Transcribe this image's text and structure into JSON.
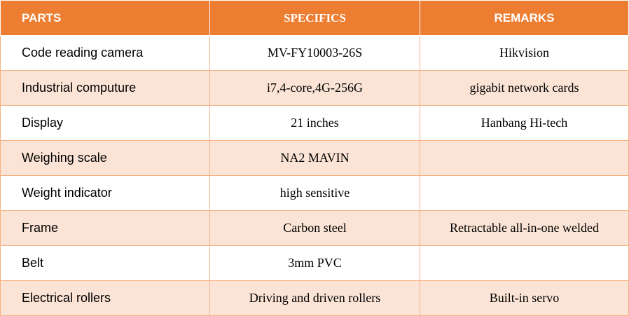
{
  "table": {
    "headers": {
      "parts": "PARTS",
      "specifics": "SPECIFICS",
      "remarks": "REMARKS"
    },
    "rows": [
      {
        "part": "Code reading camera",
        "spec": "MV-FY10003-26S",
        "remark": "Hikvision"
      },
      {
        "part": "Industrial computure",
        "spec": "i7,4-core,4G-256G",
        "remark": "gigabit network cards"
      },
      {
        "part": "Display",
        "spec": "21 inches",
        "remark": "Hanbang Hi-tech"
      },
      {
        "part": "Weighing scale",
        "spec": "NA2 MAVIN",
        "remark": ""
      },
      {
        "part": "Weight indicator",
        "spec": "high sensitive",
        "remark": ""
      },
      {
        "part": "Frame",
        "spec": "Carbon steel",
        "remark": "Retractable all-in-one welded"
      },
      {
        "part": "Belt",
        "spec": "3mm PVC",
        "remark": ""
      },
      {
        "part": "Electrical rollers",
        "spec": "Driving and driven rollers",
        "remark": "Built-in servo"
      }
    ]
  },
  "colors": {
    "header_bg": "#ed7d31",
    "header_text": "#ffffff",
    "band_light": "#ffffff",
    "band_tint": "#fbe4d5",
    "grid_line": "#f4b183"
  }
}
